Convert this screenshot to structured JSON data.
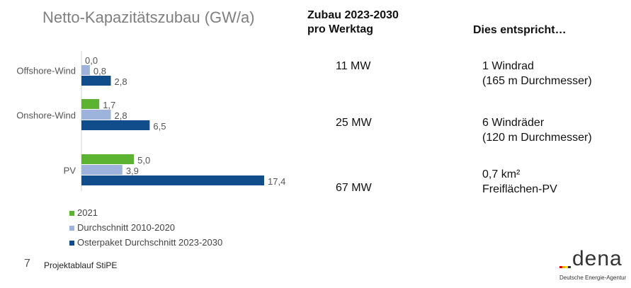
{
  "chart_data": {
    "type": "bar",
    "orientation": "horizontal",
    "title": "Netto-Kapazitätszubau (GW/a)",
    "categories": [
      "Offshore-Wind",
      "Onshore-Wind",
      "PV"
    ],
    "series": [
      {
        "name": "2021",
        "color": "#5cb231",
        "values": [
          0.0,
          1.7,
          5.0
        ],
        "labels": [
          "0,0",
          "1,7",
          "5,0"
        ]
      },
      {
        "name": "Durchschnitt 2010-2020",
        "color": "#9db3dc",
        "values": [
          0.8,
          2.8,
          3.9
        ],
        "labels": [
          "0,8",
          "2,8",
          "3,9"
        ]
      },
      {
        "name": "Osterpaket Durchschnitt 2023-2030",
        "color": "#114d8a",
        "values": [
          2.8,
          6.5,
          17.4
        ],
        "labels": [
          "2,8",
          "6,5",
          "17,4"
        ]
      }
    ],
    "xlim": [
      0,
      17.4
    ],
    "grid": false,
    "legend": "bottom-left"
  },
  "table": {
    "col1_header": [
      "Zubau 2023-2030",
      "pro Werktag"
    ],
    "col2_header": "Dies entspricht…",
    "rows": [
      {
        "col1": "11 MW",
        "col2": [
          "1 Windrad",
          "(165 m Durchmesser)"
        ]
      },
      {
        "col1": "25 MW",
        "col2": [
          "6 Windräder",
          "(120 m Durchmesser)"
        ]
      },
      {
        "col1": "67 MW",
        "col2": [
          "0,7 km²",
          "Freiflächen-PV"
        ]
      }
    ]
  },
  "footer": {
    "page": "7",
    "text": "Projektablauf StiPE"
  },
  "logo": {
    "word": "dena",
    "subtitle": "Deutsche Energie-Agentur"
  }
}
